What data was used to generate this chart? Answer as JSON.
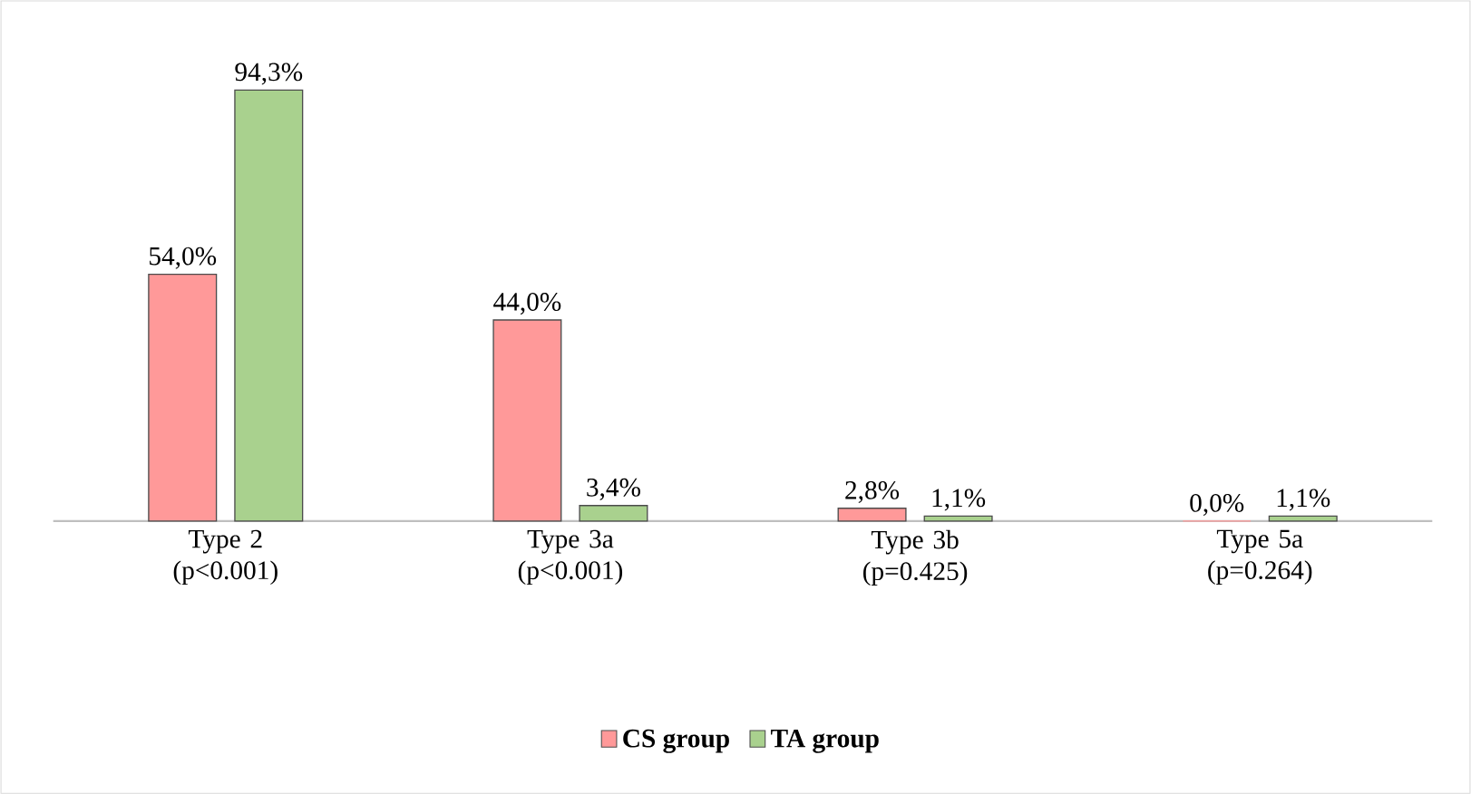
{
  "chart_data": {
    "type": "bar",
    "categories": [
      "Type 2 (p<0.001)",
      "Type 3a (p<0.001)",
      "Type 3b (p=0.425)",
      "Type 5a (p=0.264)"
    ],
    "series": [
      {
        "name": "CS group",
        "color": "#ff9999",
        "values": [
          54.0,
          44.0,
          2.8,
          0.0
        ],
        "value_labels": [
          "54,0%",
          "44,0%",
          "2,8%",
          "0,0%"
        ]
      },
      {
        "name": "TA group",
        "color": "#a9d18e",
        "values": [
          94.3,
          3.4,
          1.1,
          1.1
        ],
        "value_labels": [
          "94,3%",
          "3,4%",
          "1,1%",
          "1,1%"
        ]
      }
    ],
    "legend": "bottom"
  }
}
